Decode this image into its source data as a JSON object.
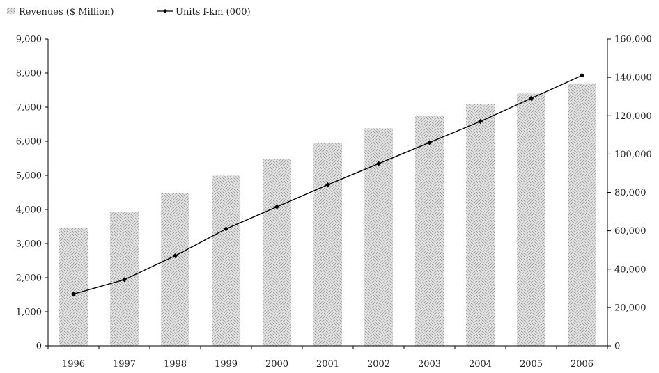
{
  "chart_data": {
    "type": "bar",
    "categories": [
      "1996",
      "1997",
      "1998",
      "1999",
      "2000",
      "2001",
      "2002",
      "2003",
      "2004",
      "2005",
      "2006"
    ],
    "series": [
      {
        "name": "Revenues ($ Million)",
        "type": "bar",
        "axis": "left",
        "color": "#c4c4c4",
        "values": [
          3450,
          3930,
          4480,
          4990,
          5480,
          5950,
          6380,
          6760,
          7100,
          7400,
          7700
        ]
      },
      {
        "name": "Units f-km (000)",
        "type": "line",
        "axis": "right",
        "color": "#000000",
        "values": [
          27000,
          34500,
          47000,
          61000,
          72500,
          84000,
          95000,
          106000,
          117000,
          129000,
          141000
        ]
      }
    ],
    "y_left": {
      "ylim": [
        0,
        9000
      ],
      "ticks": [
        0,
        1000,
        2000,
        3000,
        4000,
        5000,
        6000,
        7000,
        8000,
        9000
      ],
      "tick_labels": [
        "0",
        "1,000",
        "2,000",
        "3,000",
        "4,000",
        "5,000",
        "6,000",
        "7,000",
        "8,000",
        "9,000"
      ]
    },
    "y_right": {
      "ylim": [
        0,
        160000
      ],
      "ticks": [
        0,
        20000,
        40000,
        60000,
        80000,
        100000,
        120000,
        140000,
        160000
      ],
      "tick_labels": [
        "0",
        "20,000",
        "40,000",
        "60,000",
        "80,000",
        "100,000",
        "120,000",
        "140,000",
        "160,000"
      ]
    },
    "legend": {
      "placement": "top-left",
      "entries": [
        "Revenues ($ Million)",
        "Units f-km (000)"
      ]
    },
    "grid": false
  }
}
